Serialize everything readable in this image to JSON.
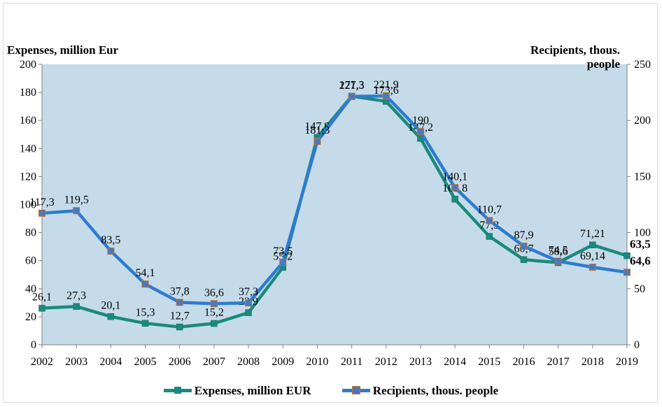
{
  "chart_data": {
    "type": "line",
    "categories": [
      "2002",
      "2003",
      "2004",
      "2005",
      "2006",
      "2007",
      "2008",
      "2009",
      "2010",
      "2011",
      "2012",
      "2013",
      "2014",
      "2015",
      "2016",
      "2017",
      "2018",
      "2019"
    ],
    "y_left_label": "Expenses, million Eur",
    "y_right_label": "Recipients, thous. people",
    "ylim_left": [
      0,
      200
    ],
    "ylim_right": [
      0,
      250
    ],
    "y_left_ticks": [
      "0",
      "20",
      "40",
      "60",
      "80",
      "100",
      "120",
      "140",
      "160",
      "180",
      "200"
    ],
    "y_right_ticks": [
      "0",
      "50",
      "100",
      "150",
      "200",
      "250"
    ],
    "series": [
      {
        "name": "Expenses, million EUR",
        "axis": "left",
        "color": "#1a8a7e",
        "values": [
          26.1,
          27.3,
          20.1,
          15.3,
          12.7,
          15.2,
          22.9,
          55.2,
          147.9,
          177.3,
          173.6,
          147.2,
          103.8,
          77.3,
          60.7,
          58.6,
          71.21,
          63.5
        ],
        "labels": [
          "26,1",
          "27,3",
          "20,1",
          "15,3",
          "12,7",
          "15,2",
          "22,9",
          "55,2",
          "147,9",
          "177,3",
          "173,6",
          "147,2",
          "103,8",
          "77,3",
          "60,7",
          "58,6",
          "71,21",
          "63,5"
        ]
      },
      {
        "name": "Recipients, thous. people",
        "axis": "right",
        "color": "#2e7bd0",
        "values": [
          117.3,
          119.5,
          83.5,
          54.1,
          37.8,
          36.6,
          37.3,
          73.5,
          181.3,
          221.3,
          221.9,
          190,
          140.1,
          110.7,
          87.9,
          74.5,
          69.14,
          64.6
        ],
        "labels": [
          "117,3",
          "119,5",
          "83,5",
          "54,1",
          "37,8",
          "36,6",
          "37,3",
          "73,5",
          "181,3",
          "221,3",
          "221,9",
          "190",
          "140,1",
          "110,7",
          "87,9",
          "74,5",
          "69,14",
          "64,6"
        ]
      }
    ],
    "grid": false,
    "legend_position": "bottom",
    "plot_background": "#c5dbe9"
  }
}
